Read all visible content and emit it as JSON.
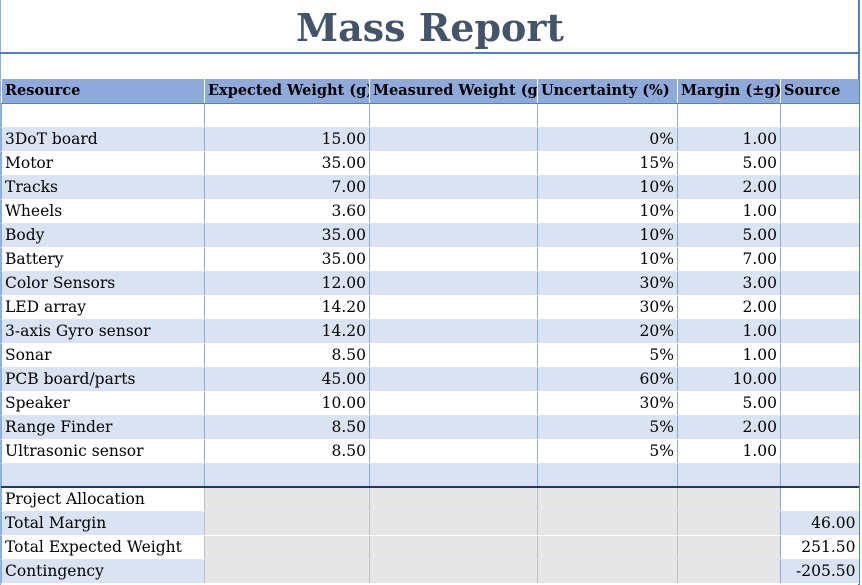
{
  "title": "Mass Report",
  "columns": [
    "Resource",
    "Expected Weight (g)",
    "Measured Weight (g)",
    "Uncertainty (%)",
    "Margin (±g)",
    "Source"
  ],
  "rows": [
    {
      "resource": "3DoT board",
      "expected": "15.00",
      "measured": "",
      "uncertainty": "0%",
      "margin": "1.00",
      "source": ""
    },
    {
      "resource": "Motor",
      "expected": "35.00",
      "measured": "",
      "uncertainty": "15%",
      "margin": "5.00",
      "source": ""
    },
    {
      "resource": "Tracks",
      "expected": "7.00",
      "measured": "",
      "uncertainty": "10%",
      "margin": "2.00",
      "source": ""
    },
    {
      "resource": "Wheels",
      "expected": "3.60",
      "measured": "",
      "uncertainty": "10%",
      "margin": "1.00",
      "source": ""
    },
    {
      "resource": "Body",
      "expected": "35.00",
      "measured": "",
      "uncertainty": "10%",
      "margin": "5.00",
      "source": ""
    },
    {
      "resource": "Battery",
      "expected": "35.00",
      "measured": "",
      "uncertainty": "10%",
      "margin": "7.00",
      "source": ""
    },
    {
      "resource": "Color Sensors",
      "expected": "12.00",
      "measured": "",
      "uncertainty": "30%",
      "margin": "3.00",
      "source": ""
    },
    {
      "resource": "LED array",
      "expected": "14.20",
      "measured": "",
      "uncertainty": "30%",
      "margin": "2.00",
      "source": ""
    },
    {
      "resource": "3-axis Gyro sensor",
      "expected": "14.20",
      "measured": "",
      "uncertainty": "20%",
      "margin": "1.00",
      "source": ""
    },
    {
      "resource": "Sonar",
      "expected": "8.50",
      "measured": "",
      "uncertainty": "5%",
      "margin": "1.00",
      "source": ""
    },
    {
      "resource": "PCB board/parts",
      "expected": "45.00",
      "measured": "",
      "uncertainty": "60%",
      "margin": "10.00",
      "source": ""
    },
    {
      "resource": "Speaker",
      "expected": "10.00",
      "measured": "",
      "uncertainty": "30%",
      "margin": "5.00",
      "source": ""
    },
    {
      "resource": "Range Finder",
      "expected": "8.50",
      "measured": "",
      "uncertainty": "5%",
      "margin": "2.00",
      "source": ""
    },
    {
      "resource": "Ultrasonic sensor",
      "expected": "8.50",
      "measured": "",
      "uncertainty": "5%",
      "margin": "1.00",
      "source": ""
    }
  ],
  "summary": [
    {
      "label": "Project Allocation",
      "value": ""
    },
    {
      "label": "Total Margin",
      "value": "46.00"
    },
    {
      "label": "Total Expected Weight",
      "value": "251.50"
    },
    {
      "label": "Contingency",
      "value": "-205.50"
    }
  ]
}
